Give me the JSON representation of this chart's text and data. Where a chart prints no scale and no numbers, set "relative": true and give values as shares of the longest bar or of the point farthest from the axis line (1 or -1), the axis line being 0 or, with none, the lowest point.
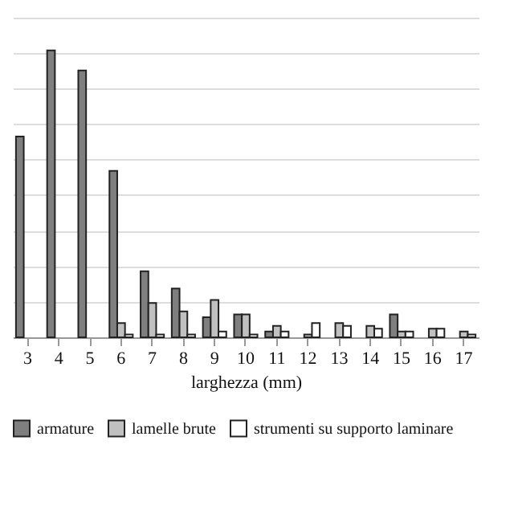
{
  "chart_data": {
    "type": "bar",
    "relative": true,
    "xlabel": "larghezza (mm)",
    "categories": [
      "3",
      "4",
      "5",
      "6",
      "7",
      "8",
      "9",
      "10",
      "11",
      "12",
      "13",
      "14",
      "15",
      "16",
      "17"
    ],
    "series": [
      {
        "name": "armature",
        "color": "#7f7f7f",
        "values": [
          0.7,
          1,
          0.93,
          0.58,
          0.23,
          0.17,
          0.07,
          0.08,
          0.02,
          null,
          null,
          null,
          0.08,
          null,
          null
        ]
      },
      {
        "name": "lamelle brute",
        "color": "#c0c0c0",
        "values": [
          null,
          null,
          null,
          0.05,
          0.12,
          0.09,
          0.13,
          0.08,
          0.04,
          0.01,
          0.05,
          0.04,
          0.02,
          0.03,
          0.02
        ]
      },
      {
        "name": "strumenti su supporto laminare",
        "color": "#ffffff",
        "values": [
          null,
          null,
          null,
          0.01,
          0.01,
          0.01,
          0.02,
          0.01,
          0.02,
          0.05,
          0.04,
          0.03,
          0.02,
          0.03,
          0.01
        ]
      }
    ],
    "grid": "y",
    "legend": "bottom"
  }
}
